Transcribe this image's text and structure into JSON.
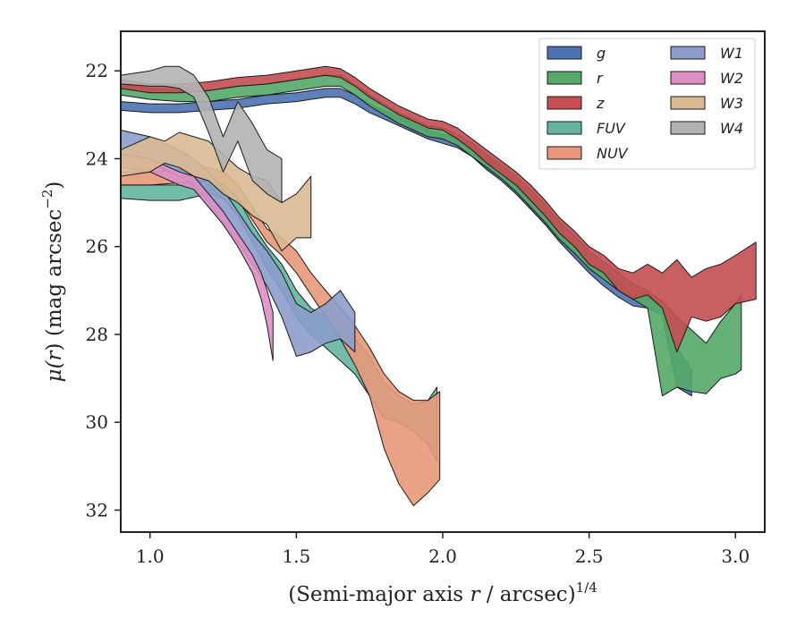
{
  "chart_data": {
    "type": "area",
    "xlabel": {
      "pre": "(Semi-major axis ",
      "var": "r",
      "post": " / arcsec)",
      "sup": "1/4"
    },
    "ylabel": {
      "pre": "μ(",
      "var": "r",
      "post": ") (mag arcsec",
      "sup": "−2",
      "end": ")"
    },
    "xlim": [
      0.9,
      3.1
    ],
    "ylim": [
      32.5,
      21.1
    ],
    "y_inverted": true,
    "xticks": [
      1.0,
      1.5,
      2.0,
      2.5,
      3.0
    ],
    "xtick_labels": [
      "1.0",
      "1.5",
      "2.0",
      "2.5",
      "3.0"
    ],
    "yticks": [
      22,
      24,
      26,
      28,
      30,
      32
    ],
    "ytick_labels": [
      "22",
      "24",
      "26",
      "28",
      "30",
      "32"
    ],
    "grid": false,
    "legend_position": "top-right",
    "legend_columns": 2,
    "series": [
      {
        "name": "g",
        "color": "#4c72b0",
        "x": [
          0.9,
          1.0,
          1.1,
          1.2,
          1.3,
          1.4,
          1.5,
          1.55,
          1.6,
          1.65,
          1.7,
          1.75,
          1.8,
          1.85,
          1.9,
          1.95,
          2.0,
          2.05,
          2.1,
          2.15,
          2.2,
          2.25,
          2.3,
          2.35,
          2.4,
          2.45,
          2.5,
          2.55,
          2.6,
          2.65,
          2.7,
          2.75,
          2.8,
          2.85
        ],
        "y_upper": [
          22.7,
          22.75,
          22.75,
          22.7,
          22.65,
          22.55,
          22.5,
          22.45,
          22.4,
          22.4,
          22.55,
          22.75,
          22.9,
          23.05,
          23.2,
          23.35,
          23.45,
          23.5,
          23.7,
          23.95,
          24.2,
          24.45,
          24.8,
          25.15,
          25.5,
          25.85,
          26.2,
          26.5,
          26.75,
          27.0,
          27.15,
          27.3,
          28.3,
          28.8
        ],
        "y_lower": [
          22.9,
          22.95,
          22.95,
          22.9,
          22.85,
          22.75,
          22.7,
          22.65,
          22.6,
          22.6,
          22.75,
          22.95,
          23.1,
          23.25,
          23.4,
          23.55,
          23.65,
          23.75,
          23.95,
          24.25,
          24.5,
          24.8,
          25.15,
          25.5,
          25.9,
          26.25,
          26.6,
          26.9,
          27.15,
          27.35,
          27.4,
          27.55,
          29.2,
          29.4
        ]
      },
      {
        "name": "r",
        "color": "#55a868",
        "x": [
          0.9,
          1.0,
          1.1,
          1.2,
          1.3,
          1.4,
          1.5,
          1.55,
          1.6,
          1.65,
          1.7,
          1.75,
          1.8,
          1.85,
          1.9,
          1.95,
          2.0,
          2.05,
          2.1,
          2.15,
          2.2,
          2.25,
          2.3,
          2.35,
          2.4,
          2.45,
          2.5,
          2.55,
          2.6,
          2.65,
          2.7,
          2.75,
          2.8,
          2.85,
          2.9,
          2.95,
          3.0,
          3.02
        ],
        "y_upper": [
          22.3,
          22.4,
          22.45,
          22.45,
          22.35,
          22.3,
          22.2,
          22.15,
          22.1,
          22.1,
          22.3,
          22.55,
          22.75,
          22.95,
          23.1,
          23.25,
          23.3,
          23.45,
          23.65,
          23.9,
          24.15,
          24.4,
          24.7,
          25.05,
          25.45,
          25.75,
          26.1,
          26.35,
          26.6,
          26.85,
          27.0,
          27.25,
          27.6,
          27.9,
          28.2,
          27.7,
          27.3,
          27.1
        ],
        "y_lower": [
          22.55,
          22.65,
          22.7,
          22.7,
          22.6,
          22.55,
          22.45,
          22.4,
          22.35,
          22.35,
          22.55,
          22.8,
          23.0,
          23.2,
          23.35,
          23.5,
          23.55,
          23.7,
          23.95,
          24.2,
          24.45,
          24.75,
          25.1,
          25.45,
          25.85,
          26.15,
          26.5,
          26.75,
          27.0,
          27.2,
          27.4,
          29.4,
          29.2,
          29.3,
          29.35,
          29.0,
          28.9,
          28.8
        ]
      },
      {
        "name": "z",
        "color": "#c44e52",
        "x": [
          0.9,
          1.0,
          1.1,
          1.2,
          1.3,
          1.4,
          1.5,
          1.55,
          1.6,
          1.65,
          1.7,
          1.75,
          1.8,
          1.85,
          1.9,
          1.95,
          2.0,
          2.05,
          2.1,
          2.15,
          2.2,
          2.25,
          2.3,
          2.35,
          2.4,
          2.45,
          2.5,
          2.55,
          2.6,
          2.65,
          2.7,
          2.75,
          2.8,
          2.85,
          2.9,
          2.95,
          3.0,
          3.07
        ],
        "y_upper": [
          22.2,
          22.3,
          22.3,
          22.25,
          22.15,
          22.1,
          22.0,
          21.95,
          21.9,
          21.95,
          22.15,
          22.4,
          22.6,
          22.8,
          22.95,
          23.1,
          23.15,
          23.3,
          23.55,
          23.8,
          24.05,
          24.3,
          24.6,
          24.95,
          25.35,
          25.65,
          26.0,
          26.2,
          26.5,
          26.6,
          26.4,
          26.6,
          26.3,
          26.7,
          26.5,
          26.4,
          26.2,
          25.9
        ],
        "y_lower": [
          22.4,
          22.5,
          22.5,
          22.45,
          22.35,
          22.3,
          22.2,
          22.15,
          22.1,
          22.15,
          22.35,
          22.6,
          22.8,
          23.0,
          23.15,
          23.3,
          23.35,
          23.55,
          23.8,
          24.1,
          24.35,
          24.6,
          24.95,
          25.3,
          25.7,
          26.0,
          26.4,
          26.6,
          27.0,
          27.2,
          27.1,
          27.4,
          28.4,
          27.6,
          27.7,
          27.6,
          27.3,
          27.2
        ]
      },
      {
        "name": "FUV",
        "color": "#64b5a0",
        "x": [
          0.9,
          1.0,
          1.1,
          1.2,
          1.25,
          1.3,
          1.35,
          1.4,
          1.45,
          1.5,
          1.55,
          1.6,
          1.65,
          1.7,
          1.75,
          1.8,
          1.85,
          1.9,
          1.95,
          1.98
        ],
        "y_upper": [
          24.6,
          24.6,
          24.6,
          24.4,
          24.5,
          24.9,
          25.5,
          26.0,
          26.4,
          27.0,
          27.4,
          27.6,
          27.8,
          28.1,
          28.5,
          29.1,
          29.4,
          29.6,
          29.5,
          29.2
        ],
        "y_lower": [
          24.9,
          24.95,
          24.95,
          24.8,
          24.9,
          25.3,
          25.9,
          26.5,
          27.0,
          27.6,
          28.0,
          28.3,
          28.6,
          28.9,
          29.4,
          29.9,
          30.0,
          30.2,
          30.5,
          30.9
        ]
      },
      {
        "name": "NUV",
        "color": "#e8987a",
        "x": [
          0.9,
          1.0,
          1.1,
          1.2,
          1.25,
          1.3,
          1.35,
          1.4,
          1.45,
          1.5,
          1.55,
          1.6,
          1.65,
          1.7,
          1.75,
          1.8,
          1.85,
          1.9,
          1.95,
          1.99
        ],
        "y_upper": [
          24.3,
          24.3,
          24.25,
          24.2,
          24.3,
          24.6,
          25.1,
          25.6,
          25.8,
          26.1,
          26.6,
          27.0,
          27.4,
          27.8,
          28.3,
          28.9,
          29.3,
          29.5,
          29.5,
          29.3
        ],
        "y_lower": [
          24.6,
          24.6,
          24.55,
          24.5,
          24.6,
          24.9,
          25.4,
          25.9,
          26.2,
          26.6,
          27.1,
          27.6,
          28.1,
          28.7,
          29.4,
          30.6,
          31.4,
          31.9,
          31.6,
          31.3
        ]
      },
      {
        "name": "W1",
        "color": "#8c9dcb",
        "x": [
          0.9,
          1.0,
          1.1,
          1.15,
          1.2,
          1.25,
          1.3,
          1.35,
          1.4,
          1.45,
          1.5,
          1.55,
          1.6,
          1.65,
          1.7
        ],
        "y_upper": [
          23.35,
          23.5,
          23.8,
          24.0,
          24.3,
          24.7,
          25.2,
          25.7,
          26.1,
          26.6,
          27.3,
          27.5,
          27.3,
          27.0,
          27.5
        ],
        "y_lower": [
          23.9,
          24.1,
          24.4,
          24.6,
          25.0,
          25.5,
          25.9,
          26.4,
          26.9,
          27.6,
          28.5,
          28.4,
          28.2,
          28.1,
          28.4
        ]
      },
      {
        "name": "W2",
        "color": "#dd8fc4",
        "x": [
          0.9,
          1.0,
          1.1,
          1.15,
          1.2,
          1.25,
          1.3,
          1.35,
          1.38,
          1.4,
          1.42
        ],
        "y_upper": [
          23.9,
          24.0,
          24.3,
          24.4,
          24.8,
          25.2,
          25.7,
          26.2,
          26.6,
          27.0,
          27.5
        ],
        "y_lower": [
          24.2,
          24.3,
          24.6,
          24.7,
          25.1,
          25.5,
          26.0,
          26.6,
          27.2,
          27.8,
          28.6
        ]
      },
      {
        "name": "W3",
        "color": "#d9b992",
        "x": [
          0.9,
          1.0,
          1.05,
          1.1,
          1.15,
          1.2,
          1.25,
          1.3,
          1.35,
          1.4,
          1.45,
          1.5,
          1.55
        ],
        "y_upper": [
          23.8,
          23.5,
          23.6,
          23.4,
          23.5,
          23.6,
          23.9,
          24.2,
          24.4,
          24.5,
          25.0,
          24.8,
          24.4
        ],
        "y_lower": [
          24.4,
          24.3,
          24.1,
          24.2,
          24.4,
          24.5,
          24.8,
          25.0,
          25.3,
          25.5,
          26.1,
          25.8,
          25.8
        ]
      },
      {
        "name": "W4",
        "color": "#b2b2b2",
        "x": [
          0.9,
          1.0,
          1.05,
          1.1,
          1.15,
          1.2,
          1.25,
          1.3,
          1.35,
          1.4,
          1.45
        ],
        "y_upper": [
          22.1,
          22.0,
          21.9,
          21.9,
          22.1,
          22.6,
          23.5,
          22.7,
          23.2,
          23.8,
          24.0
        ],
        "y_lower": [
          22.3,
          22.35,
          22.35,
          22.4,
          22.6,
          23.4,
          24.3,
          23.6,
          24.5,
          24.8,
          25.0
        ]
      }
    ]
  }
}
